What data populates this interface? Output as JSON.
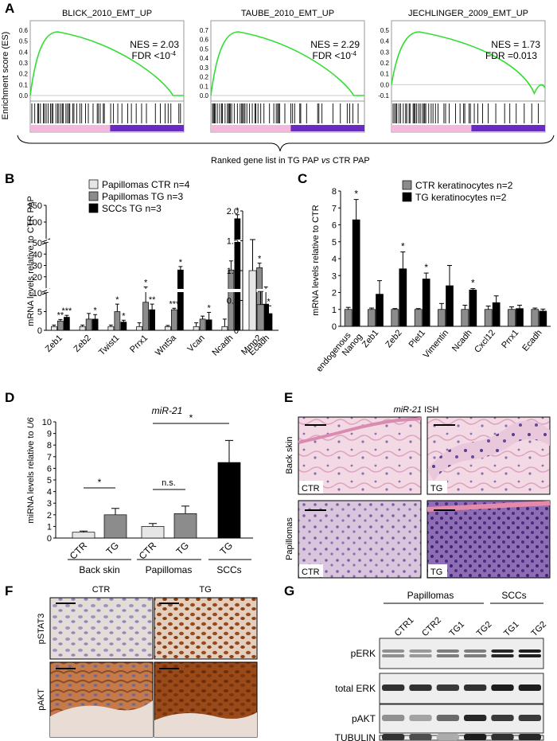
{
  "panel_letters": {
    "A": "A",
    "B": "B",
    "C": "C",
    "D": "D",
    "E": "E",
    "F": "F",
    "G": "G"
  },
  "gsea": {
    "ylabel": "Enrichment score (ES)",
    "xcaption": "Ranked gene list in TG PAP",
    "xcaption_vs": "vs",
    "xcaption_end": "CTR PAP",
    "plots": [
      {
        "title": "BLICK_2010_EMT_UP",
        "nes": "NES = 2.03",
        "fdr": "FDR <10",
        "fdr_exp": "-4",
        "ticks": [
          "0.6",
          "0.5",
          "0.4",
          "0.3",
          "0.2",
          "0.1",
          "0.0"
        ]
      },
      {
        "title": "TAUBE_2010_EMT_UP",
        "nes": "NES = 2.29",
        "fdr": "FDR <10",
        "fdr_exp": "-4",
        "ticks": [
          "0.7",
          "0.6",
          "0.5",
          "0.4",
          "0.3",
          "0.2",
          "0.1",
          "0.0"
        ]
      },
      {
        "title": "JECHLINGER_2009_EMT_UP",
        "nes": "NES = 1.73",
        "fdr": "FDR =0.013",
        "fdr_exp": "",
        "ticks": [
          "0.5",
          "0.4",
          "0.3",
          "0.2",
          "0.1",
          "0.0",
          "-0.1"
        ]
      }
    ]
  },
  "panelB": {
    "ylabel": "mRNA levels relative to CTR PAP",
    "legend": [
      "Papillomas CTR n=4",
      "Papillomas TG n=3",
      "SCCs TG n=3"
    ],
    "colors": [
      "#e6e6e6",
      "#8c8c8c",
      "#000000"
    ],
    "ticks_low": [
      "0",
      "5",
      "10"
    ],
    "ticks_mid": [
      "20",
      "30",
      "40",
      "50"
    ],
    "ticks_high": [
      "100",
      "150"
    ],
    "genes": [
      "Zeb1",
      "Zeb2",
      "Twist1",
      "Prrx1",
      "Wnt5a",
      "Vcan",
      "Ncadh",
      "Mmp2"
    ],
    "values": [
      [
        1,
        1,
        1,
        1,
        1,
        1,
        1,
        1
      ],
      [
        2.5,
        3,
        5,
        7.5,
        5.5,
        3,
        26,
        28
      ],
      [
        3.5,
        3,
        2.2,
        5.5,
        26,
        2.8,
        110,
        7
      ]
    ],
    "errors": [
      [
        0.4,
        0.4,
        0.4,
        1,
        0.3,
        1,
        2,
        0.3
      ],
      [
        0.4,
        1.5,
        2,
        3.5,
        0.4,
        0.8,
        8,
        4
      ],
      [
        0.5,
        1.2,
        0.5,
        1.5,
        3,
        2,
        12,
        4
      ]
    ],
    "stars": [
      [
        "**",
        "***"
      ],
      [
        "",
        "*"
      ],
      [
        "*",
        "*"
      ],
      [
        "*",
        "**"
      ],
      [
        "***",
        "*"
      ],
      [
        "",
        "*"
      ],
      [
        "",
        "*"
      ],
      [
        "*",
        ""
      ]
    ],
    "ecadh": {
      "label": "Ecadh",
      "values": [
        1.0,
        0.43,
        0.28
      ],
      "errors": [
        0.52,
        0.22,
        0.13
      ],
      "ticks": [
        "0",
        "0.5",
        "1.0",
        "1.5",
        "2.0"
      ],
      "ylim": [
        0,
        2
      ],
      "star": "*"
    }
  },
  "panelC": {
    "ylabel": "mRNA levels relative to CTR",
    "legend": [
      "CTR keratinocytes n=2",
      "TG keratinocytes n=2"
    ],
    "colors": [
      "#8c8c8c",
      "#000000"
    ],
    "ticks": [
      "0",
      "1",
      "2",
      "3",
      "4",
      "5",
      "6",
      "7",
      "8"
    ],
    "ylim": [
      0,
      8
    ],
    "genes": [
      "endogenous\nNanog",
      "Zeb1",
      "Zeb2",
      "Plet1",
      "Vimentin",
      "Ncadh",
      "Cxcl12",
      "Prrx1",
      "Ecadh"
    ],
    "ctr": [
      1,
      1,
      1,
      1,
      1,
      1,
      1,
      1,
      1
    ],
    "ctr_err": [
      0.12,
      0.08,
      0.05,
      0.05,
      0.35,
      0.25,
      0.2,
      0.15,
      0.08
    ],
    "tg": [
      6.3,
      1.9,
      3.4,
      2.8,
      2.4,
      2.15,
      1.4,
      1.05,
      0.9
    ],
    "tg_err": [
      1.2,
      0.8,
      1.0,
      0.35,
      1.2,
      0.08,
      0.4,
      0.2,
      0.12
    ],
    "stars": [
      "*",
      "",
      "*",
      "*",
      "",
      "*",
      "",
      "",
      ""
    ]
  },
  "panelD": {
    "title": "miR-21",
    "ylabel_main": "miRNA levels relative to ",
    "ylabel_ital": "U6",
    "ticks": [
      "0",
      "1",
      "2",
      "3",
      "4",
      "5",
      "6",
      "7",
      "8",
      "9",
      "10"
    ],
    "ylim": [
      0,
      10
    ],
    "bars": [
      {
        "label": "CTR",
        "value": 0.5,
        "err": 0.1,
        "color": "#e6e6e6"
      },
      {
        "label": "TG",
        "value": 2.0,
        "err": 0.55,
        "color": "#8c8c8c"
      },
      {
        "label": "CTR",
        "value": 1.0,
        "err": 0.25,
        "color": "#e6e6e6"
      },
      {
        "label": "TG",
        "value": 2.1,
        "err": 0.65,
        "color": "#8c8c8c"
      },
      {
        "label": "TG",
        "value": 6.5,
        "err": 1.9,
        "color": "#000000"
      }
    ],
    "groups": [
      "Back skin",
      "Papillomas",
      "SCCs"
    ],
    "sig": [
      "*",
      "n.s.",
      "*"
    ]
  },
  "panelE": {
    "title_ital": "miR-21",
    "title": "ISH",
    "rows": [
      "Back skin",
      "Papillomas"
    ],
    "labels": [
      "CTR",
      "TG",
      "CTR",
      "TG"
    ]
  },
  "panelF": {
    "cols": [
      "CTR",
      "TG"
    ],
    "rows": [
      "pSTAT3",
      "pAKT"
    ]
  },
  "panelG": {
    "groups": [
      "Papillomas",
      "SCCs"
    ],
    "lanes": [
      "CTR1",
      "CTR2",
      "TG1",
      "TG2",
      "TG1",
      "TG2"
    ],
    "rows": [
      "pERK",
      "total ERK",
      "pAKT",
      "TUBULIN"
    ]
  }
}
